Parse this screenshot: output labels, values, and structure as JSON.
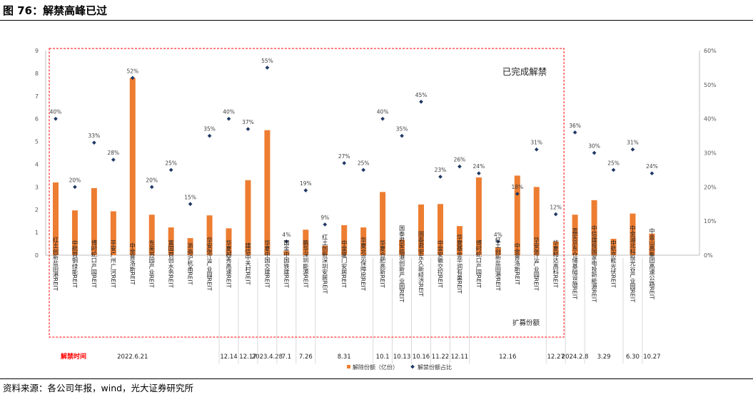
{
  "figure_title": "图 76：解禁高峰已过",
  "source_note": "资料来源：各公司年报，wind，光大证券研究所",
  "colors": {
    "bar": "#ED7D31",
    "marker": "#1F3864",
    "box": "#FF0000",
    "label_red": "#FF0000"
  },
  "chart_data": {
    "type": "bar",
    "title": "",
    "legend_position": "bottom",
    "annotations": {
      "completed": "已完成解禁",
      "expansion": "扩募份额",
      "date_axis_label": "解禁时间"
    },
    "y_left": {
      "min": 0,
      "max": 9,
      "ticks": [
        "0",
        "1",
        "2",
        "3",
        "4",
        "5",
        "6",
        "7",
        "8",
        "9"
      ]
    },
    "y_right": {
      "min": 0,
      "max": 60,
      "ticks": [
        "0%",
        "10%",
        "20%",
        "30%",
        "40%",
        "50%",
        "60%"
      ]
    },
    "series": [
      {
        "name": "解除份额（亿份）",
        "kind": "bar",
        "axis": "left"
      },
      {
        "name": "解禁份额占比",
        "kind": "marker",
        "axis": "right"
      }
    ],
    "points": [
      {
        "name": "红土创新盐田港REIT",
        "value": 3.2,
        "ratio": 40,
        "ratio_label": "40%"
      },
      {
        "name": "中航首钢绿能REIT",
        "value": 1.97,
        "ratio": 20,
        "ratio_label": "20%"
      },
      {
        "name": "博时蛇口产园REIT",
        "value": 2.95,
        "ratio": 33,
        "ratio_label": "33%"
      },
      {
        "name": "平安广州广河REIT",
        "value": 1.93,
        "ratio": 28,
        "ratio_label": "28%"
      },
      {
        "name": "中金普洛斯REIT",
        "value": 7.8,
        "ratio": 52,
        "ratio_label": "52%"
      },
      {
        "name": "东吴苏园产业REIT",
        "value": 1.78,
        "ratio": 20,
        "ratio_label": "20%"
      },
      {
        "name": "富国首创水务REIT",
        "value": 1.22,
        "ratio": 25,
        "ratio_label": "25%"
      },
      {
        "name": "浙商沪杭甬REIT",
        "value": 0.75,
        "ratio": 15,
        "ratio_label": "15%"
      },
      {
        "name": "华安张江产业园REIT",
        "value": 1.75,
        "ratio": 35,
        "ratio_label": "35%"
      },
      {
        "name": "华夏越秀高速REIT",
        "value": 1.18,
        "ratio": 40,
        "ratio_label": "40%"
      },
      {
        "name": "建信中关村REIT",
        "value": 3.3,
        "ratio": 37,
        "ratio_label": "37%"
      },
      {
        "name": "华夏中国交建REIT",
        "value": 5.5,
        "ratio": 55,
        "ratio_label": "55%"
      },
      {
        "name": "国金中国铁建REIT",
        "value": 0.18,
        "ratio": 4,
        "ratio_label": "4%"
      },
      {
        "name": "鹏华深圳能源REIT",
        "value": 1.12,
        "ratio": 19,
        "ratio_label": "19%"
      },
      {
        "name": "红土创新深圳安居REIT",
        "value": 0.42,
        "ratio": 9,
        "ratio_label": "9%"
      },
      {
        "name": "中金厦门安居REIT",
        "value": 1.32,
        "ratio": 27,
        "ratio_label": "27%"
      },
      {
        "name": "华夏北京保障房REIT",
        "value": 1.22,
        "ratio": 25,
        "ratio_label": "25%"
      },
      {
        "name": "华夏合肥高新REIT",
        "value": 2.78,
        "ratio": 40,
        "ratio_label": "40%"
      },
      {
        "name": "国泰君安临港创新产业园REIT",
        "value": 0.68,
        "ratio": 35,
        "ratio_label": "35%"
      },
      {
        "name": "国泰君安东久新经济REIT",
        "value": 2.23,
        "ratio": 45,
        "ratio_label": "45%"
      },
      {
        "name": "中金安徽交控REIT",
        "value": 2.25,
        "ratio": 23,
        "ratio_label": "23%"
      },
      {
        "name": "华夏基金华润有巢REIT",
        "value": 1.28,
        "ratio": 26,
        "ratio_label": "26%"
      },
      {
        "name": "博时蛇口产园REIT",
        "value": 3.42,
        "ratio": 24,
        "ratio_label": "24%"
      },
      {
        "name": "红土创新盐田港REIT",
        "value": 0.35,
        "ratio": 4,
        "ratio_label": "4%"
      },
      {
        "name": "中金普洛斯REIT",
        "value": 3.5,
        "ratio": 18,
        "ratio_label": "18%"
      },
      {
        "name": "华安张江产业园REIT",
        "value": 3.0,
        "ratio": 31,
        "ratio_label": "31%"
      },
      {
        "name": "华夏和达高科REIT",
        "value": 0.6,
        "ratio": 12,
        "ratio_label": "12%"
      },
      {
        "name": "嘉实京东仓储基础设施REIT",
        "value": 1.78,
        "ratio": 36,
        "ratio_label": "36%"
      },
      {
        "name": "中信建投国家电投新能源REIT",
        "value": 2.42,
        "ratio": 30,
        "ratio_label": "30%"
      },
      {
        "name": "中航京能光伏REIT",
        "value": 0.72,
        "ratio": 25,
        "ratio_label": "25%"
      },
      {
        "name": "中金湖北科投光谷产业园REIT",
        "value": 1.83,
        "ratio": 31,
        "ratio_label": "31%"
      },
      {
        "name": "中金山高集团高速公路REIT",
        "value": 0.95,
        "ratio": 24,
        "ratio_label": "24%"
      }
    ],
    "date_groups": [
      {
        "label": "2022.6.21",
        "start": 0,
        "end": 8
      },
      {
        "label": "12.14",
        "start": 9,
        "end": 9
      },
      {
        "label": "12.17",
        "start": 10,
        "end": 10
      },
      {
        "label": "2023.4.28",
        "start": 11,
        "end": 11
      },
      {
        "label": "7.1",
        "start": 12,
        "end": 12
      },
      {
        "label": "7.26",
        "start": 13,
        "end": 13
      },
      {
        "label": "8.31",
        "start": 14,
        "end": 16
      },
      {
        "label": "10.1",
        "start": 17,
        "end": 17
      },
      {
        "label": "10.13",
        "start": 18,
        "end": 18
      },
      {
        "label": "10.16",
        "start": 19,
        "end": 19
      },
      {
        "label": "11.22",
        "start": 20,
        "end": 20
      },
      {
        "label": "12.11",
        "start": 21,
        "end": 21
      },
      {
        "label": "12.16",
        "start": 22,
        "end": 25
      },
      {
        "label": "12.27",
        "start": 26,
        "end": 26
      },
      {
        "label": "2024.2.8",
        "start": 27,
        "end": 27
      },
      {
        "label": "3.29",
        "start": 28,
        "end": 29
      },
      {
        "label": "6.30",
        "start": 30,
        "end": 30
      },
      {
        "label": "10.27",
        "start": 31,
        "end": 31
      }
    ]
  }
}
